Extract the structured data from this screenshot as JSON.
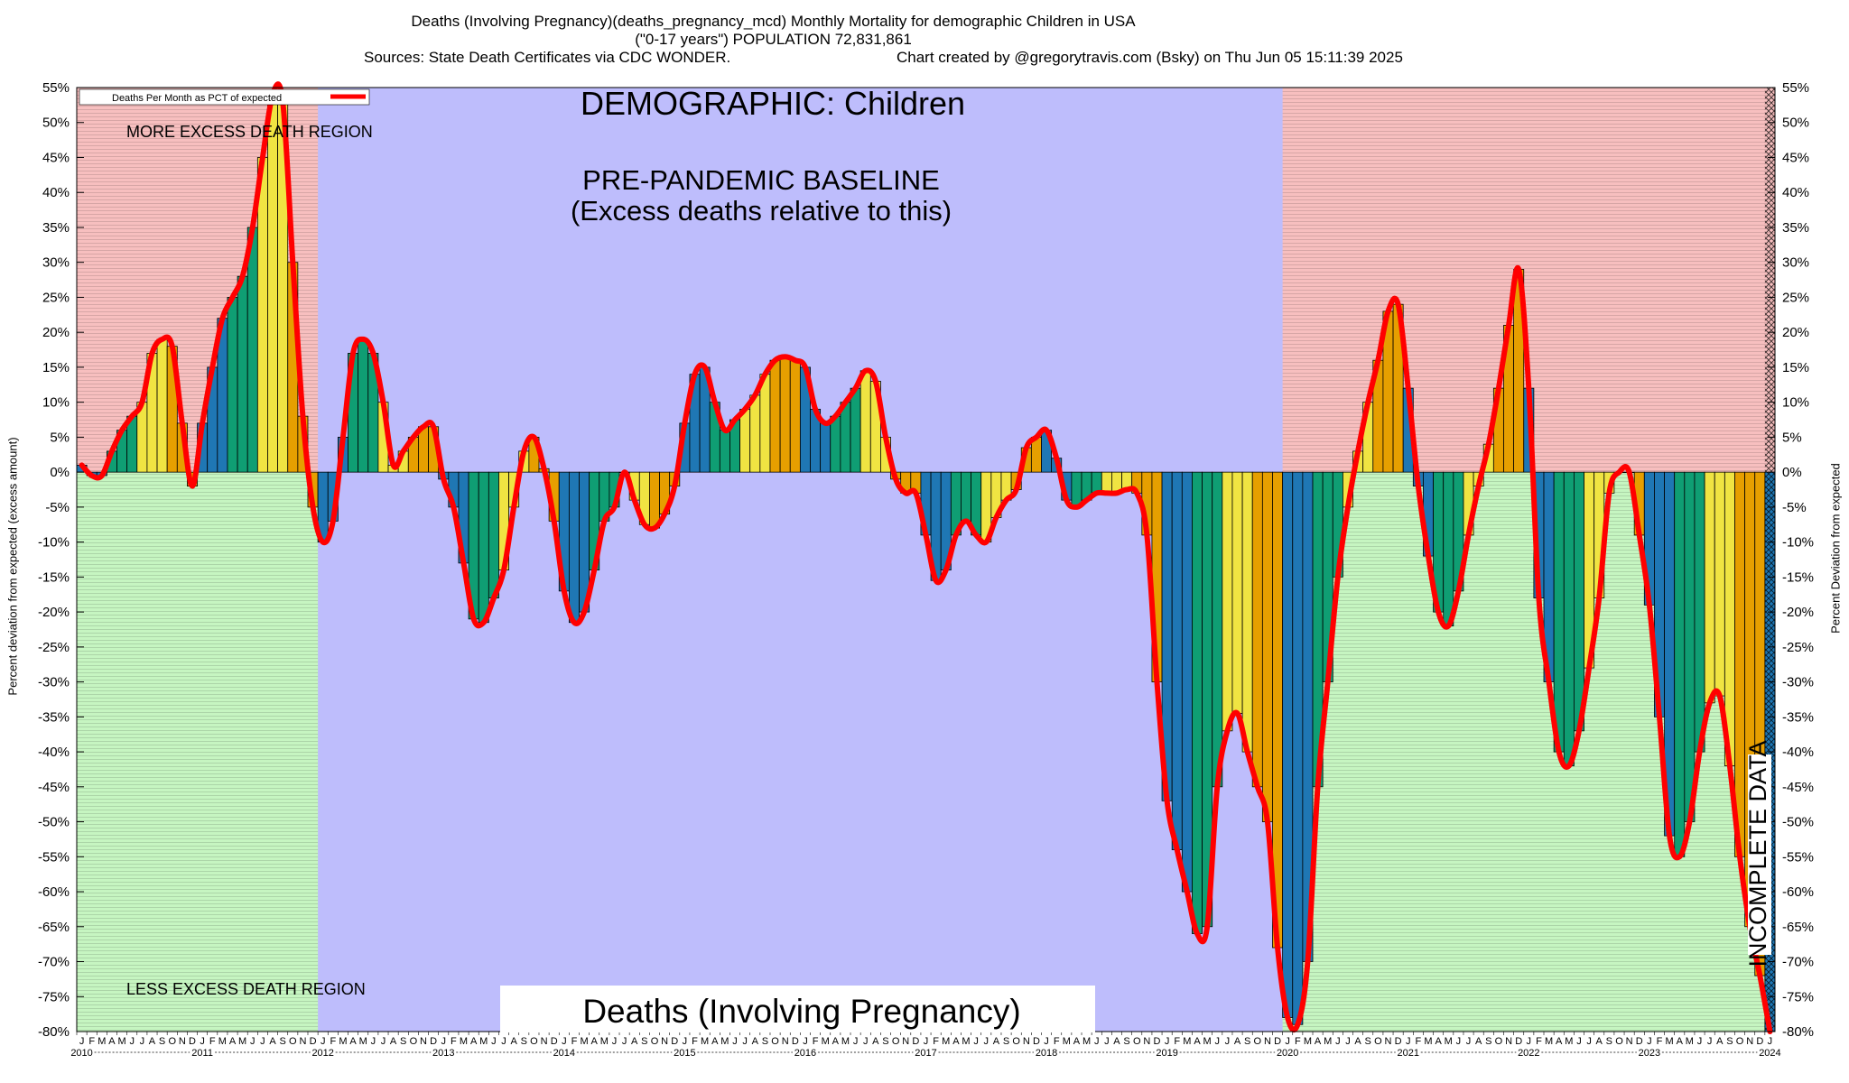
{
  "header": {
    "line1": "Deaths (Involving Pregnancy)(deaths_pregnancy_mcd) Monthly Mortality for demographic Children in USA",
    "line2": "(\"0-17 years\") POPULATION 72,831,861",
    "line3_left": "Sources: State Death Certificates via CDC WONDER.",
    "line3_right": "Chart created by @gregorytravis.com (Bsky) on Thu Jun 05 15:11:39 2025"
  },
  "chart_data": {
    "type": "bar",
    "title": "DEMOGRAPHIC: Children",
    "baseline_label_1": "PRE-PANDEMIC BASELINE",
    "baseline_label_2": "(Excess deaths relative to this)",
    "more_region_label": "MORE EXCESS DEATH REGION",
    "less_region_label": "LESS EXCESS DEATH REGION",
    "incomplete_label": "INCOMPLETE DATA",
    "bottom_caption": "Deaths (Involving Pregnancy)",
    "legend_label": "Deaths Per Month as PCT of expected",
    "ylabel_left": "Percent deviation from expected (excess amount)",
    "ylabel_right": "Percent Deviation from expected",
    "ylim": [
      -80,
      55
    ],
    "yticks": [
      55,
      50,
      45,
      40,
      35,
      30,
      25,
      20,
      15,
      10,
      5,
      0,
      -5,
      -10,
      -15,
      -20,
      -25,
      -30,
      -35,
      -40,
      -45,
      -50,
      -55,
      -60,
      -65,
      -70,
      -75,
      -80
    ],
    "x_start": "2010-01",
    "years": [
      "2010",
      "2011",
      "2012",
      "2013",
      "2014",
      "2015",
      "2016",
      "2017",
      "2018",
      "2019",
      "2020",
      "2021",
      "2022",
      "2023",
      "2024"
    ],
    "month_letters": [
      "J",
      "F",
      "M",
      "A",
      "M",
      "J",
      "J",
      "A",
      "S",
      "O",
      "N",
      "D"
    ],
    "baseline_period": [
      "2012-01",
      "2019-12"
    ],
    "incomplete_from": "2024-01",
    "values": [
      1,
      -0.5,
      -0.5,
      3,
      6,
      8,
      10,
      17,
      19,
      18,
      7,
      -2,
      7,
      15,
      22,
      25,
      28,
      35,
      45,
      54,
      53,
      30,
      8,
      -5,
      -10,
      -7,
      5,
      17,
      19,
      17,
      10,
      1,
      3,
      5,
      6.5,
      6.5,
      -1,
      -5,
      -13,
      -21,
      -21.5,
      -18,
      -14,
      -5,
      3,
      5,
      0.5,
      -7,
      -17,
      -21.5,
      -20,
      -14,
      -7,
      -5,
      0,
      -4,
      -7.5,
      -8,
      -6,
      -2,
      7,
      14,
      15,
      10,
      6,
      7.5,
      9,
      11,
      14,
      16,
      16.5,
      16,
      15,
      9,
      7,
      8,
      10,
      12,
      14.5,
      13,
      5,
      -1,
      -3,
      -3,
      -9,
      -15.5,
      -14,
      -9,
      -7,
      -9,
      -10,
      -6.5,
      -4,
      -2.5,
      3.5,
      5,
      6,
      2,
      -4,
      -5,
      -4,
      -3,
      -3,
      -3,
      -2.5,
      -3,
      -9,
      -30,
      -47,
      -54,
      -60,
      -66,
      -65,
      -45,
      -37,
      -34.5,
      -40,
      -45,
      -50,
      -68,
      -78,
      -79,
      -70,
      -45,
      -30,
      -15,
      -5,
      3,
      10,
      16,
      23,
      24,
      12,
      -2,
      -12,
      -20,
      -22,
      -17,
      -9,
      -2,
      4,
      12,
      21,
      29,
      12,
      -18,
      -30,
      -40,
      -42,
      -37,
      -28,
      -18,
      -3,
      0,
      0,
      -9,
      -19,
      -35,
      -52,
      -55,
      -50,
      -40,
      -33,
      -32,
      -42,
      -55,
      -65,
      -72,
      -80
    ]
  },
  "colors": {
    "more_region": "#f7bfbf",
    "less_region": "#c6f5c1",
    "baseline_region": "#bebdfc",
    "line": "#ff0000",
    "bar_palette": [
      "#1f77b4",
      "#0f9e73",
      "#f0e442",
      "#e69f00"
    ]
  }
}
